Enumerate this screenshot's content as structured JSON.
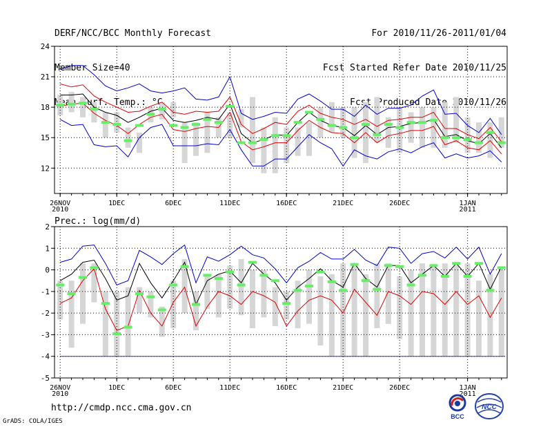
{
  "header": {
    "title": "DERF/NCC/BCC Monthly Forecast",
    "member": "Member Size=40",
    "variable": "Mean Surf. Temp.: °C",
    "period": "For 2010/11/26-2011/01/04",
    "started": "Fcst Started Refer Date 2010/11/25",
    "produced": "Fcst Produced Date 2010/11/26"
  },
  "footer": {
    "url": "http://cmdp.ncc.cma.gov.cn",
    "credit": "GrADS: COLA/IGES",
    "logo_left": "BCC",
    "logo_right": "NCC"
  },
  "colors": {
    "envelope": "#0000cc",
    "spread": "#dd0000",
    "mean": "#000000",
    "box": "#d6d6d6",
    "marker": "#66ee66",
    "floor": "#3030a0",
    "grid": "#000000"
  },
  "chart_data": [
    {
      "type": "line",
      "title": "Mean Surf. Temp.: °C",
      "xlabel": "",
      "ylabel": "",
      "x_tick_labels": [
        "26NOV\n2010",
        "1DEC",
        "6DEC",
        "11DEC",
        "16DEC",
        "21DEC",
        "26DEC",
        "1JAN\n2011"
      ],
      "x_tick_days": [
        0,
        5,
        10,
        15,
        20,
        25,
        30,
        36
      ],
      "xlim": [
        -0.5,
        39.5
      ],
      "ylim": [
        9.5,
        24
      ],
      "y_ticks": [
        12,
        15,
        18,
        21,
        24
      ],
      "grid": true,
      "box_range": [
        [
          17.2,
          19.2
        ],
        [
          17.5,
          19.5
        ],
        [
          17,
          19
        ],
        [
          16.5,
          18.5
        ],
        [
          15,
          17.5
        ],
        [
          15.5,
          17.5
        ],
        [
          14,
          16
        ],
        [
          13.5,
          15.5
        ],
        [
          16.5,
          18
        ],
        [
          16.8,
          18.5
        ],
        [
          17,
          18.5
        ],
        [
          12.5,
          16.5
        ],
        [
          13.2,
          16.5
        ],
        [
          13.5,
          17.5
        ],
        [
          15,
          17
        ],
        [
          15,
          17.5
        ],
        [
          16,
          17.8
        ],
        [
          12.5,
          19
        ],
        [
          11.5,
          16
        ],
        [
          11.5,
          17
        ],
        [
          12.5,
          16
        ],
        [
          13.2,
          16
        ],
        [
          13.2,
          16.5
        ],
        [
          15,
          18
        ],
        [
          15.5,
          18.5
        ],
        [
          15,
          18
        ],
        [
          13,
          18
        ],
        [
          12.5,
          18.5
        ],
        [
          14.5,
          19
        ],
        [
          14,
          17
        ],
        [
          13.5,
          18
        ],
        [
          14.5,
          17.5
        ],
        [
          14,
          18
        ],
        [
          14,
          18
        ],
        [
          14,
          18.5
        ],
        [
          14.5,
          19
        ],
        [
          13.5,
          17
        ],
        [
          13.5,
          16.5
        ],
        [
          13,
          16.5
        ],
        [
          14,
          17
        ]
      ],
      "marker": [
        18.2,
        18.3,
        18.4,
        17.8,
        16.5,
        16.3,
        14.7,
        16.2,
        17.3,
        17.8,
        16.2,
        16.0,
        16.3,
        16.8,
        16.5,
        18.1,
        14.5,
        14.5,
        14.8,
        15.2,
        15.2,
        16.5,
        17.5,
        16.8,
        16.2,
        16.0,
        15.0,
        16.3,
        15.3,
        16.3,
        16.0,
        16.5,
        16.5,
        16.7,
        15.0,
        15.0,
        14.8,
        14.5,
        15.5,
        14.5
      ],
      "series": [
        {
          "name": "ensemble maximum",
          "style": "envelope",
          "values": [
            21.7,
            22.1,
            22.1,
            21.2,
            20.1,
            19.6,
            19.9,
            20.3,
            19.6,
            19.4,
            19.6,
            19.9,
            18.8,
            18.7,
            19.0,
            21.0,
            17.4,
            16.8,
            17.1,
            17.5,
            17.4,
            18.8,
            19.3,
            18.6,
            17.8,
            17.8,
            17.1,
            18.2,
            17.3,
            17.9,
            17.9,
            18.2,
            19.1,
            19.7,
            17.3,
            17.4,
            16.2,
            15.5,
            16.9,
            15.3
          ]
        },
        {
          "name": "upper spread",
          "style": "spread",
          "values": [
            20.3,
            20.0,
            20.2,
            19.1,
            18.5,
            18.0,
            17.5,
            17.6,
            18.1,
            18.5,
            17.5,
            17.3,
            17.6,
            17.5,
            17.6,
            19.0,
            16.3,
            15.4,
            15.9,
            16.5,
            16.3,
            17.6,
            18.2,
            17.4,
            17.0,
            16.8,
            16.3,
            16.8,
            16.1,
            16.7,
            16.8,
            17.0,
            17.0,
            17.5,
            15.9,
            15.9,
            15.3,
            14.9,
            16.0,
            14.6
          ]
        },
        {
          "name": "ensemble mean",
          "style": "mean",
          "values": [
            19.2,
            19.2,
            19.3,
            18.0,
            17.5,
            17.2,
            16.5,
            17.0,
            17.6,
            17.9,
            16.7,
            16.5,
            16.7,
            17.0,
            16.8,
            18.3,
            15.4,
            14.5,
            14.8,
            15.3,
            15.2,
            16.5,
            17.5,
            16.7,
            16.2,
            16.0,
            15.2,
            16.2,
            15.3,
            16.0,
            16.1,
            16.4,
            16.5,
            16.8,
            15.1,
            15.3,
            14.7,
            14.4,
            15.4,
            14.0
          ]
        },
        {
          "name": "lower spread",
          "style": "spread",
          "values": [
            18.1,
            18.3,
            18.4,
            17.4,
            16.7,
            16.2,
            15.4,
            16.3,
            17.0,
            17.3,
            15.8,
            15.6,
            15.9,
            16.1,
            16.0,
            17.5,
            14.6,
            13.8,
            14.1,
            14.5,
            14.5,
            15.7,
            16.7,
            16.0,
            15.5,
            15.4,
            14.5,
            15.5,
            14.5,
            15.2,
            15.4,
            15.7,
            15.7,
            16.1,
            14.3,
            14.7,
            14.0,
            13.8,
            14.7,
            13.4
          ]
        },
        {
          "name": "ensemble minimum",
          "style": "envelope",
          "values": [
            16.8,
            16.2,
            16.3,
            14.3,
            14.1,
            14.2,
            13.1,
            15.0,
            16.0,
            16.3,
            14.2,
            14.2,
            14.2,
            14.4,
            14.3,
            15.8,
            13.8,
            12.2,
            12.2,
            12.9,
            12.9,
            14.1,
            15.3,
            14.5,
            13.9,
            12.2,
            13.8,
            13.2,
            12.9,
            13.6,
            13.9,
            13.5,
            14.1,
            14.5,
            13.0,
            13.4,
            13.0,
            13.2,
            13.7,
            12.6
          ]
        }
      ]
    },
    {
      "type": "line",
      "title": "Prec.: log(mm/d)",
      "xlabel": "",
      "ylabel": "",
      "x_tick_labels": [
        "26NOV\n2010",
        "1DEC",
        "6DEC",
        "11DEC",
        "16DEC",
        "21DEC",
        "26DEC",
        "1JAN\n2011"
      ],
      "x_tick_days": [
        0,
        5,
        10,
        15,
        20,
        25,
        30,
        36
      ],
      "xlim": [
        -0.5,
        39.5
      ],
      "ylim": [
        -5,
        2
      ],
      "y_ticks": [
        -5,
        -4,
        -3,
        -2,
        -1,
        0,
        1,
        2
      ],
      "grid": true,
      "floor": -4,
      "box_range": [
        [
          -2.3,
          -0.5
        ],
        [
          -3.6,
          -0.5
        ],
        [
          -2.5,
          0.3
        ],
        [
          -1.5,
          0.3
        ],
        [
          -4,
          -1
        ],
        [
          -4,
          -1
        ],
        [
          -4,
          -0.8
        ],
        [
          -2,
          -0.8
        ],
        [
          -2.2,
          -1
        ],
        [
          -3.1,
          -1.7
        ],
        [
          -2.7,
          -0.5
        ],
        [
          -2,
          0.5
        ],
        [
          -2.8,
          -1
        ],
        [
          -1.8,
          -0.2
        ],
        [
          -2.2,
          -0.2
        ],
        [
          -1.8,
          0.2
        ],
        [
          -2.1,
          0.5
        ],
        [
          -2.7,
          0
        ],
        [
          -2.2,
          0
        ],
        [
          -2.6,
          -0.8
        ],
        [
          -2.3,
          -1
        ],
        [
          -2.7,
          -0.5
        ],
        [
          -2.5,
          0
        ],
        [
          -3.5,
          -0.3
        ],
        [
          -4,
          -0.2
        ],
        [
          -4,
          0.3
        ],
        [
          -4,
          0.3
        ],
        [
          -4,
          -0.2
        ],
        [
          -2.7,
          0.3
        ],
        [
          -2.5,
          0.3
        ],
        [
          -3.2,
          -0.3
        ],
        [
          -4,
          0
        ],
        [
          -4,
          0.3
        ],
        [
          -4,
          0.2
        ],
        [
          -4,
          0.3
        ],
        [
          -4,
          0.2
        ],
        [
          -4,
          0.3
        ],
        [
          -4,
          -0.5
        ],
        [
          -4,
          -0.2
        ],
        [
          -4,
          0
        ]
      ],
      "marker": [
        -0.7,
        -1.1,
        -0.35,
        0.1,
        -1.55,
        -2.95,
        -2.65,
        -1.1,
        -1.25,
        -1.85,
        -0.7,
        0.15,
        -1.6,
        -0.25,
        -0.4,
        -0.1,
        -0.7,
        0.35,
        -0.25,
        -0.5,
        -1.55,
        -0.95,
        -0.75,
        -0.1,
        -0.55,
        -0.95,
        0.25,
        -0.5,
        -0.9,
        0.2,
        0.15,
        -0.7,
        -0.25,
        0.2,
        -0.3,
        0.3,
        -0.3,
        0.3,
        -0.95,
        0.1
      ],
      "series": [
        {
          "name": "ensemble maximum",
          "style": "envelope",
          "values": [
            0.35,
            0.5,
            1.1,
            1.15,
            0.3,
            -0.7,
            -0.5,
            0.9,
            0.6,
            0.25,
            0.75,
            1.15,
            -0.6,
            0.6,
            0.4,
            0.7,
            1.1,
            0.7,
            0.55,
            0.05,
            -0.6,
            0.1,
            0.4,
            0.8,
            0.5,
            0.5,
            0.95,
            0.45,
            0.2,
            1.05,
            1.0,
            0.3,
            0.75,
            0.85,
            0.55,
            1.05,
            0.5,
            1.05,
            -0.2,
            0.75
          ]
        },
        {
          "name": "ensemble mean",
          "style": "mean",
          "values": [
            -0.5,
            -0.2,
            0.35,
            0.45,
            -0.4,
            -1.4,
            -1.2,
            0.3,
            -0.6,
            -1.3,
            -0.5,
            0.35,
            -1.6,
            -0.5,
            -0.2,
            -0.05,
            -0.6,
            0.3,
            -0.2,
            -0.6,
            -1.4,
            -0.8,
            -0.4,
            0.05,
            -0.5,
            -0.8,
            0.3,
            -0.4,
            -0.8,
            0.2,
            0.2,
            -0.6,
            -0.2,
            0.2,
            -0.3,
            0.3,
            -0.3,
            0.3,
            -0.9,
            0.15
          ]
        },
        {
          "name": "ensemble minimum",
          "style": "spread",
          "values": [
            -1.55,
            -1.3,
            -0.5,
            0.05,
            -1.8,
            -2.8,
            -2.6,
            -0.95,
            -2.0,
            -2.6,
            -1.5,
            -0.8,
            -2.6,
            -1.7,
            -1.0,
            -1.2,
            -1.6,
            -1.0,
            -1.2,
            -1.5,
            -2.6,
            -1.9,
            -1.4,
            -1.2,
            -1.4,
            -2.0,
            -0.9,
            -1.5,
            -2.1,
            -1.0,
            -1.2,
            -1.6,
            -1.0,
            -1.1,
            -1.6,
            -1.0,
            -1.6,
            -1.2,
            -2.2,
            -1.3
          ]
        }
      ]
    }
  ]
}
